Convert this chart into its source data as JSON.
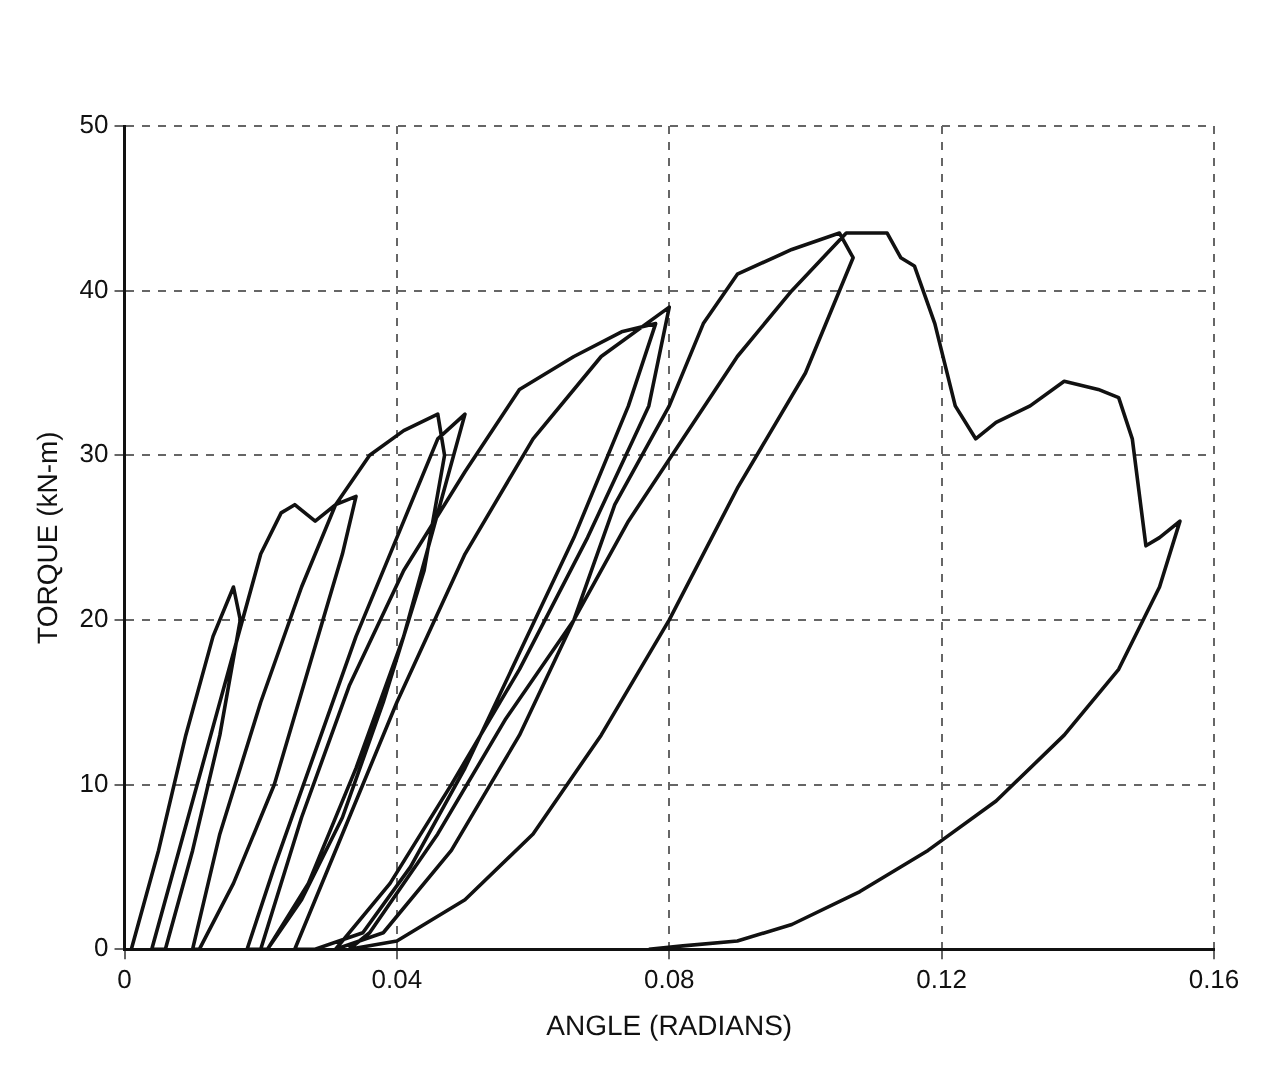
{
  "chart_data": {
    "type": "line",
    "xlabel": "ANGLE (RADIANS)",
    "ylabel": "TORQUE (kN-m)",
    "xlim": [
      0,
      0.16
    ],
    "ylim": [
      0,
      50
    ],
    "xticks": [
      0,
      0.04,
      0.08,
      0.12,
      0.16
    ],
    "yticks": [
      0,
      10,
      20,
      30,
      40,
      50
    ],
    "grid": true,
    "marker": "none",
    "line_style": "solid",
    "legend": false,
    "series": [
      {
        "color": "#111111",
        "x": [
          0.001,
          0.005,
          0.009,
          0.013,
          0.016,
          0.017,
          0.014,
          0.01,
          0.006,
          0.004,
          0.008,
          0.012,
          0.016,
          0.02,
          0.023,
          0.025,
          0.028,
          0.031,
          0.034,
          0.032,
          0.027,
          0.022,
          0.016,
          0.011,
          0.01,
          0.014,
          0.02,
          0.026,
          0.031,
          0.036,
          0.041,
          0.046,
          0.047,
          0.044,
          0.038,
          0.032,
          0.026,
          0.021,
          0.018,
          0.022,
          0.028,
          0.034,
          0.04,
          0.046,
          0.05,
          0.047,
          0.041,
          0.034,
          0.027,
          0.021,
          0.02,
          0.026,
          0.033,
          0.041,
          0.05,
          0.058,
          0.066,
          0.073,
          0.078,
          0.074,
          0.066,
          0.058,
          0.05,
          0.042,
          0.035,
          0.028,
          0.025,
          0.032,
          0.04,
          0.05,
          0.06,
          0.07,
          0.08,
          0.077,
          0.068,
          0.058,
          0.048,
          0.039,
          0.031,
          0.038,
          0.048,
          0.058,
          0.066,
          0.072,
          0.08,
          0.085,
          0.09,
          0.098,
          0.105,
          0.107,
          0.1,
          0.09,
          0.08,
          0.07,
          0.06,
          0.05,
          0.04,
          0.033,
          0.036,
          0.046,
          0.056,
          0.066,
          0.074,
          0.082,
          0.09,
          0.098,
          0.106,
          0.112,
          0.114,
          0.116,
          0.119,
          0.122,
          0.125,
          0.128,
          0.133,
          0.138,
          0.143,
          0.146,
          0.148,
          0.15,
          0.152,
          0.155,
          0.152,
          0.146,
          0.138,
          0.128,
          0.118,
          0.108,
          0.098,
          0.09,
          0.082,
          0.077
        ],
        "values": [
          0,
          6,
          13,
          19,
          22,
          20,
          13,
          6,
          0,
          0,
          6,
          12,
          18,
          24,
          26.5,
          27,
          26,
          27,
          27.5,
          24,
          17,
          10,
          4,
          0,
          0,
          7,
          15,
          22,
          27,
          30,
          31.5,
          32.5,
          30,
          23,
          15,
          8,
          3,
          0,
          0,
          5,
          12,
          19,
          25,
          31,
          32.5,
          28,
          19,
          11,
          4,
          0,
          0,
          8,
          16,
          23,
          29,
          34,
          36,
          37.5,
          38,
          33,
          25,
          18,
          11,
          5,
          1,
          0,
          0,
          7,
          15,
          24,
          31,
          36,
          39,
          33,
          25,
          17,
          10,
          4,
          0,
          1,
          6,
          13,
          20,
          27,
          33,
          38,
          41,
          42.5,
          43.5,
          42,
          35,
          28,
          20,
          13,
          7,
          3,
          0.5,
          0,
          1,
          7,
          14,
          20,
          26,
          31,
          36,
          40,
          43.5,
          43.5,
          42,
          41.5,
          38,
          33,
          31,
          32,
          33,
          34.5,
          34,
          33.5,
          31,
          24.5,
          25,
          26,
          22,
          17,
          13,
          9,
          6,
          3.5,
          1.5,
          0.5,
          0.2,
          0
        ]
      }
    ]
  }
}
